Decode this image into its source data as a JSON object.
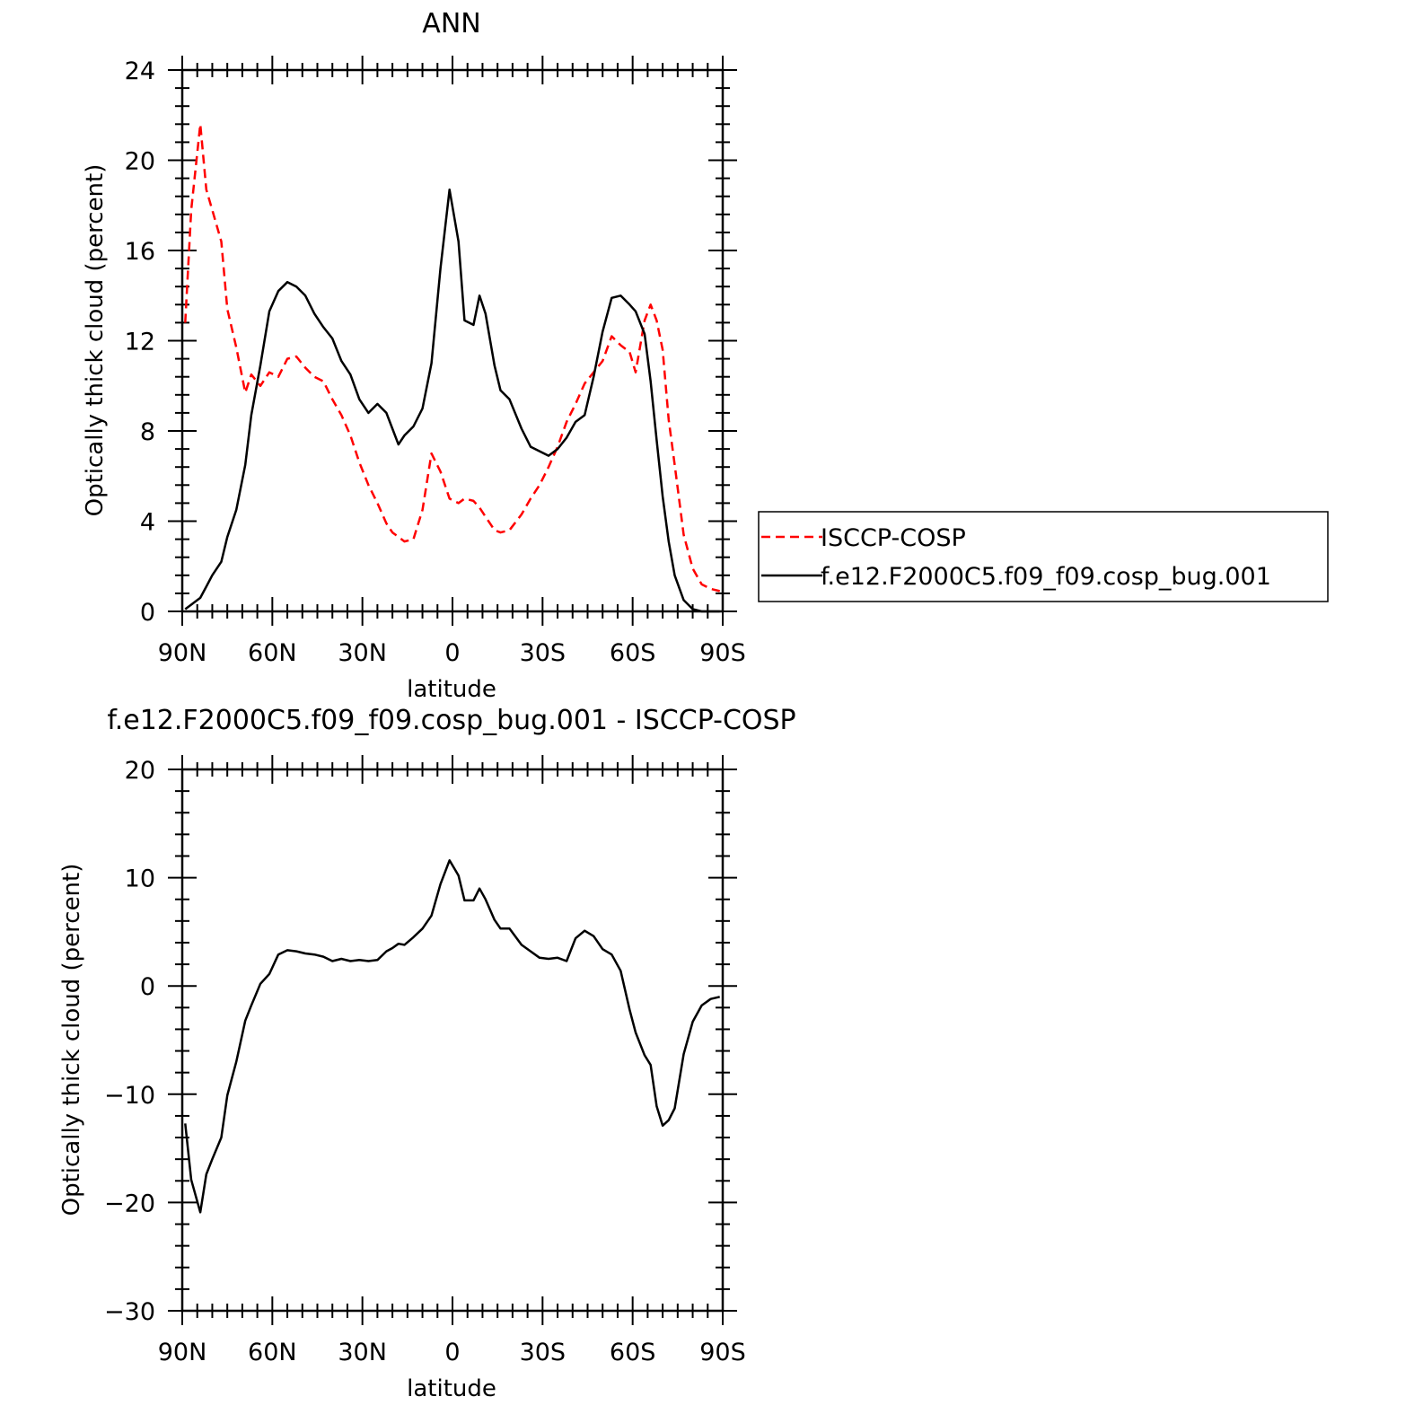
{
  "chart_data": [
    {
      "type": "line",
      "title": "ANN",
      "xlabel": "latitude",
      "ylabel": "Optically thick cloud (percent)",
      "xlim": [
        90,
        -90
      ],
      "ylim": [
        0,
        24
      ],
      "yticks": [
        0,
        4,
        8,
        12,
        16,
        20,
        24
      ],
      "xticks": [
        {
          "value": 90,
          "label": "90N"
        },
        {
          "value": 60,
          "label": "60N"
        },
        {
          "value": 30,
          "label": "30N"
        },
        {
          "value": 0,
          "label": "0"
        },
        {
          "value": -30,
          "label": "30S"
        },
        {
          "value": -60,
          "label": "60S"
        },
        {
          "value": -90,
          "label": "90S"
        }
      ],
      "grid": false,
      "legend": "right",
      "series": [
        {
          "name": "ISCCP-COSP",
          "color": "#ff0000",
          "dash": "dashed",
          "x": [
            89,
            87,
            84,
            82,
            80,
            77,
            75,
            72,
            69,
            67,
            64,
            61,
            58,
            55,
            52,
            49,
            46,
            43,
            40,
            37,
            34,
            31,
            28,
            25,
            22,
            20,
            18,
            16,
            13,
            10,
            7,
            4,
            1,
            -2,
            -4,
            -7,
            -9,
            -11,
            -14,
            -16,
            -19,
            -23,
            -26,
            -29,
            -32,
            -35,
            -38,
            -41,
            -44,
            -47,
            -50,
            -53,
            -56,
            -59,
            -61,
            -64,
            -66,
            -68,
            -70,
            -72,
            -74,
            -77,
            -80,
            -83,
            -86,
            -89
          ],
          "y": [
            12.8,
            17.8,
            21.6,
            18.7,
            17.8,
            16.4,
            13.4,
            11.7,
            9.7,
            10.5,
            10.0,
            10.6,
            10.4,
            11.2,
            11.3,
            10.8,
            10.4,
            10.2,
            9.4,
            8.7,
            7.8,
            6.6,
            5.6,
            4.8,
            3.9,
            3.5,
            3.3,
            3.1,
            3.2,
            4.5,
            7.0,
            6.2,
            5.0,
            4.8,
            5.0,
            4.9,
            4.6,
            4.2,
            3.6,
            3.5,
            3.6,
            4.3,
            5.0,
            5.6,
            6.4,
            7.3,
            8.4,
            9.2,
            10.1,
            10.6,
            11.1,
            12.2,
            11.8,
            11.5,
            10.6,
            12.9,
            13.6,
            12.9,
            11.6,
            8.5,
            6.5,
            3.4,
            1.9,
            1.2,
            1.0,
            0.9
          ]
        },
        {
          "name": "f.e12.F2000C5.f09_f09.cosp_bug.001",
          "color": "#000000",
          "dash": "solid",
          "x": [
            89,
            87,
            84,
            82,
            80,
            77,
            75,
            72,
            69,
            67,
            64,
            61,
            58,
            55,
            52,
            49,
            46,
            43,
            40,
            37,
            34,
            31,
            28,
            25,
            22,
            20,
            18,
            16,
            13,
            10,
            7,
            4,
            1,
            -2,
            -4,
            -7,
            -9,
            -11,
            -14,
            -16,
            -19,
            -23,
            -26,
            -29,
            -32,
            -35,
            -38,
            -41,
            -44,
            -47,
            -50,
            -53,
            -56,
            -59,
            -61,
            -64,
            -66,
            -68,
            -70,
            -72,
            -74,
            -77,
            -80,
            -83,
            -86,
            -89
          ],
          "y": [
            0.1,
            0.3,
            0.6,
            1.1,
            1.6,
            2.2,
            3.3,
            4.5,
            6.5,
            8.7,
            10.9,
            13.3,
            14.2,
            14.6,
            14.4,
            14.0,
            13.2,
            12.6,
            12.1,
            11.1,
            10.5,
            9.4,
            8.8,
            9.2,
            8.8,
            8.1,
            7.4,
            7.8,
            8.2,
            9.0,
            11.0,
            15.2,
            18.7,
            16.4,
            12.9,
            12.7,
            14.0,
            13.2,
            10.9,
            9.8,
            9.4,
            8.1,
            7.3,
            7.1,
            6.9,
            7.2,
            7.7,
            8.4,
            8.7,
            10.4,
            12.4,
            13.9,
            14.0,
            13.6,
            13.3,
            12.3,
            10.2,
            7.6,
            5.1,
            3.1,
            1.6,
            0.5,
            0.1,
            0.0,
            0.0,
            0.0
          ]
        }
      ]
    },
    {
      "type": "line",
      "title": "f.e12.F2000C5.f09_f09.cosp_bug.001 - ISCCP-COSP",
      "xlabel": "latitude",
      "ylabel": "Optically thick cloud (percent)",
      "xlim": [
        90,
        -90
      ],
      "ylim": [
        -30,
        20
      ],
      "yticks": [
        -30,
        -20,
        -10,
        0,
        10,
        20
      ],
      "xticks": [
        {
          "value": 90,
          "label": "90N"
        },
        {
          "value": 60,
          "label": "60N"
        },
        {
          "value": 30,
          "label": "30N"
        },
        {
          "value": 0,
          "label": "0"
        },
        {
          "value": -30,
          "label": "30S"
        },
        {
          "value": -60,
          "label": "60S"
        },
        {
          "value": -90,
          "label": "90S"
        }
      ],
      "grid": false,
      "series": [
        {
          "color": "#000000",
          "dash": "solid",
          "x": [
            89,
            87,
            84,
            82,
            80,
            77,
            75,
            72,
            69,
            67,
            64,
            61,
            58,
            55,
            52,
            49,
            46,
            43,
            40,
            37,
            34,
            31,
            28,
            25,
            22,
            20,
            18,
            16,
            13,
            10,
            7,
            4,
            1,
            -2,
            -4,
            -7,
            -9,
            -11,
            -14,
            -16,
            -19,
            -23,
            -26,
            -29,
            -32,
            -35,
            -38,
            -41,
            -44,
            -47,
            -50,
            -53,
            -56,
            -59,
            -61,
            -64,
            -66,
            -68,
            -70,
            -72,
            -74,
            -77,
            -80,
            -83,
            -86,
            -89
          ],
          "y": [
            -12.7,
            -17.9,
            -20.9,
            -17.4,
            -16.0,
            -14.0,
            -10.1,
            -7.0,
            -3.2,
            -1.8,
            0.2,
            1.1,
            2.9,
            3.3,
            3.2,
            3.0,
            2.9,
            2.7,
            2.3,
            2.5,
            2.3,
            2.4,
            2.3,
            2.4,
            3.2,
            3.5,
            3.9,
            3.8,
            4.5,
            5.3,
            6.5,
            9.4,
            11.6,
            10.2,
            7.9,
            7.9,
            9.0,
            8.0,
            6.1,
            5.3,
            5.3,
            3.8,
            3.2,
            2.6,
            2.5,
            2.6,
            2.3,
            4.4,
            5.1,
            4.6,
            3.4,
            2.9,
            1.4,
            -2.2,
            -4.3,
            -6.4,
            -7.3,
            -11.1,
            -12.9,
            -12.4,
            -11.3,
            -6.3,
            -3.3,
            -1.8,
            -1.2,
            -1.0
          ]
        }
      ]
    }
  ]
}
